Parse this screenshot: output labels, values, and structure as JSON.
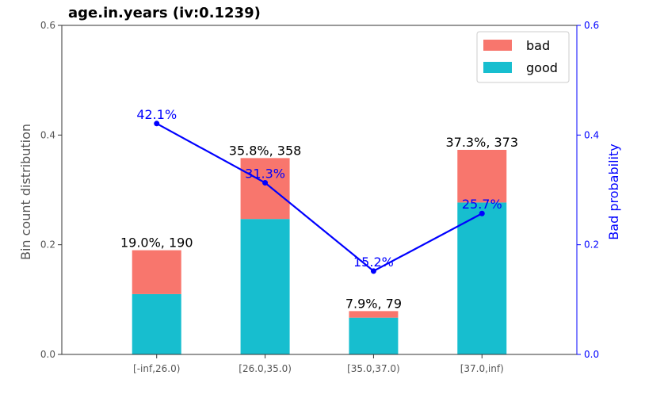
{
  "chart_data": {
    "type": "bar",
    "title": "age.in.years  (iv:0.1239)",
    "ylabel": "Bin count distribution",
    "y2label": "Bad probability",
    "categories": [
      "[-inf,26.0)",
      "[26.0,35.0)",
      "[35.0,37.0)",
      "[37.0,inf)"
    ],
    "ylim": [
      0,
      0.6
    ],
    "y2lim": [
      0,
      0.6
    ],
    "yticks": [
      "0.0",
      "0.2",
      "0.4",
      "0.6"
    ],
    "y2ticks": [
      "0.0",
      "0.2",
      "0.4",
      "0.6"
    ],
    "series": [
      {
        "name": "good",
        "values": [
          0.11,
          0.247,
          0.067,
          0.277
        ],
        "color": "#17becf"
      },
      {
        "name": "bad",
        "values": [
          0.08,
          0.111,
          0.012,
          0.096
        ],
        "color": "#f8766d"
      }
    ],
    "bar_labels": [
      "19.0%, 190",
      "35.8%, 358",
      "7.9%, 79",
      "37.3%, 373"
    ],
    "bad_probability": {
      "values": [
        0.421,
        0.313,
        0.152,
        0.257
      ],
      "labels": [
        "42.1%",
        "31.3%",
        "15.2%",
        "25.7%"
      ],
      "color": "#0000ff"
    },
    "legend": {
      "entries": [
        "bad",
        "good"
      ],
      "placement": "top-right"
    },
    "grid": false
  }
}
